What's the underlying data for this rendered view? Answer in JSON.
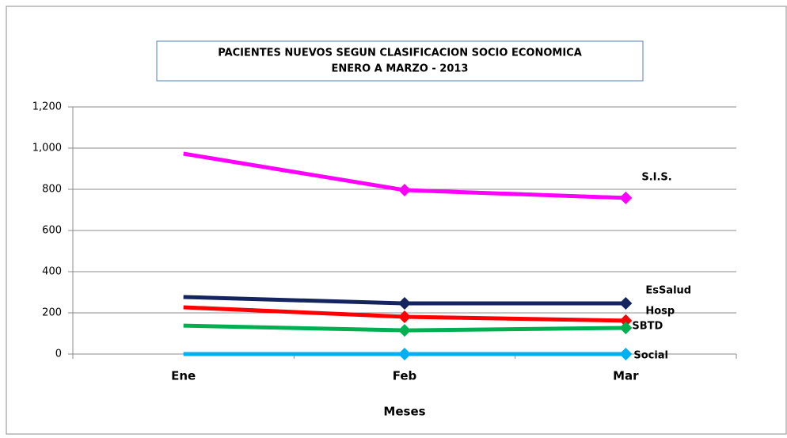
{
  "chart_data": {
    "type": "line",
    "title": [
      "PACIENTES NUEVOS SEGUN CLASIFICACION SOCIO ECONOMICA",
      "ENERO A MARZO  - 2013"
    ],
    "x_label": "Meses",
    "categories": [
      "Ene",
      "Feb",
      "Mar"
    ],
    "series": [
      {
        "name": "S.I.S.",
        "color": "#ff00ff",
        "values": [
          973,
          796,
          758
        ]
      },
      {
        "name": "EsSalud",
        "color": "#14245e",
        "values": [
          277,
          246,
          246
        ]
      },
      {
        "name": "Hosp",
        "color": "#ff0000",
        "values": [
          227,
          181,
          162
        ]
      },
      {
        "name": "SBTD",
        "color": "#00b050",
        "values": [
          138,
          115,
          127
        ]
      },
      {
        "name": "Social",
        "color": "#00b0f0",
        "values": [
          0,
          0,
          0
        ]
      }
    ],
    "ylim": [
      0,
      1200
    ],
    "yticks": [
      0,
      200,
      400,
      600,
      800,
      {
        "value": 1000,
        "label": "1,000"
      },
      {
        "value": 1200,
        "label": "1,200"
      }
    ],
    "grid": true
  }
}
